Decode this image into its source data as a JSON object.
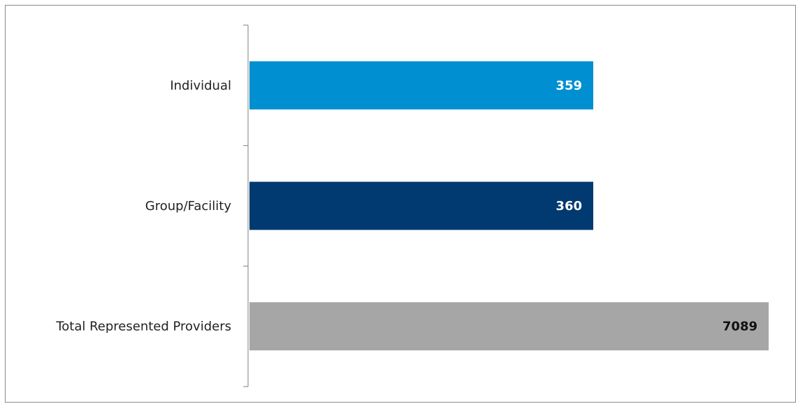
{
  "chart_data": {
    "type": "bar",
    "orientation": "horizontal",
    "categories": [
      "Individual",
      "Group/Facility",
      "Total Represented Providers"
    ],
    "values": [
      359,
      360,
      7089
    ],
    "colors": [
      "#008fd0",
      "#003a70",
      "#a6a6a6"
    ],
    "value_label_colors": [
      "#ffffff",
      "#ffffff",
      "#111111"
    ],
    "title": "",
    "xlabel": "",
    "ylabel": "",
    "grid": false,
    "legend": "none"
  }
}
